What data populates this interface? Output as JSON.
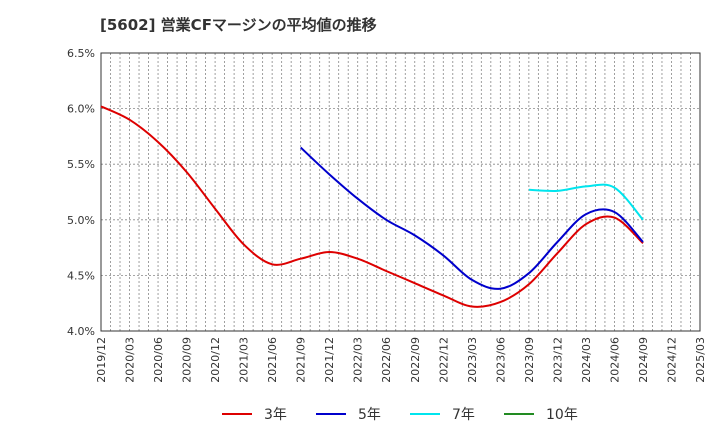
{
  "chart_data": {
    "type": "line",
    "title": "[5602]  営業CFマージンの平均値の推移",
    "xlabel": "",
    "ylabel": "",
    "ylim": [
      4.0,
      6.5
    ],
    "yticks": [
      "6.5%",
      "6.0%",
      "5.5%",
      "5.0%",
      "4.5%",
      "4.0%"
    ],
    "x_ticks": [
      "2019/12",
      "2020/03",
      "2020/06",
      "2020/09",
      "2020/12",
      "2021/03",
      "2021/06",
      "2021/09",
      "2021/12",
      "2022/03",
      "2022/06",
      "2022/09",
      "2022/12",
      "2023/03",
      "2023/06",
      "2023/09",
      "2023/12",
      "2024/03",
      "2024/06",
      "2024/09",
      "2024/12",
      "2025/03"
    ],
    "grid": true,
    "legend_position": "bottom",
    "series": [
      {
        "name": "3年",
        "color": "#dd0000",
        "x": [
          "2019/12",
          "2020/03",
          "2020/06",
          "2020/09",
          "2020/12",
          "2021/03",
          "2021/06",
          "2021/09",
          "2021/12",
          "2022/03",
          "2022/06",
          "2022/09",
          "2022/12",
          "2023/03",
          "2023/06",
          "2023/09",
          "2023/12",
          "2024/03",
          "2024/06",
          "2024/09"
        ],
        "values": [
          6.02,
          5.9,
          5.7,
          5.43,
          5.1,
          4.78,
          4.6,
          4.65,
          4.71,
          4.65,
          4.54,
          4.43,
          4.32,
          4.22,
          4.26,
          4.42,
          4.7,
          4.96,
          5.02,
          4.79
        ]
      },
      {
        "name": "5年",
        "color": "#0000cc",
        "x": [
          "2021/09",
          "2021/12",
          "2022/03",
          "2022/06",
          "2022/09",
          "2022/12",
          "2023/03",
          "2023/06",
          "2023/09",
          "2023/12",
          "2024/03",
          "2024/06",
          "2024/09"
        ],
        "values": [
          5.65,
          5.41,
          5.19,
          5.0,
          4.86,
          4.68,
          4.46,
          4.38,
          4.52,
          4.8,
          5.05,
          5.07,
          4.8
        ]
      },
      {
        "name": "7年",
        "color": "#00e5ee",
        "x": [
          "2023/09",
          "2023/12",
          "2024/03",
          "2024/06",
          "2024/09"
        ],
        "values": [
          5.27,
          5.26,
          5.3,
          5.29,
          5.0
        ]
      },
      {
        "name": "10年",
        "color": "#228b22",
        "x": [],
        "values": []
      }
    ]
  }
}
